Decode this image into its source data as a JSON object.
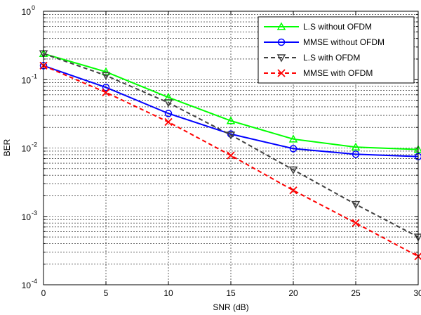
{
  "chart_data": {
    "type": "line",
    "title": "",
    "xlabel": "SNR (dB)",
    "ylabel": "BER",
    "x": [
      0,
      5,
      10,
      15,
      20,
      25,
      30
    ],
    "xlim": [
      0,
      30
    ],
    "ylim": [
      0.0001,
      1
    ],
    "yscale": "log",
    "xticks": [
      0,
      5,
      10,
      15,
      20,
      25,
      30
    ],
    "xtick_labels": [
      "0",
      "5",
      "10",
      "15",
      "20",
      "25",
      "30"
    ],
    "yticks": [
      {
        "value": 1,
        "base": "10",
        "exp": "0"
      },
      {
        "value": 0.1,
        "base": "10",
        "exp": "-1"
      },
      {
        "value": 0.01,
        "base": "10",
        "exp": "-2"
      },
      {
        "value": 0.001,
        "base": "10",
        "exp": "-3"
      },
      {
        "value": 0.0001,
        "base": "10",
        "exp": "-4"
      }
    ],
    "grid": true,
    "legend_position": "top-right",
    "series": [
      {
        "name": "L.S without OFDM",
        "color": "#00ff00",
        "linestyle": "solid",
        "marker": "triangle-up",
        "values": [
          0.24,
          0.13,
          0.055,
          0.025,
          0.0135,
          0.0103,
          0.0095
        ]
      },
      {
        "name": "MMSE without OFDM",
        "color": "#0000ff",
        "linestyle": "solid",
        "marker": "circle",
        "values": [
          0.16,
          0.077,
          0.032,
          0.016,
          0.0098,
          0.0081,
          0.0075
        ]
      },
      {
        "name": "L.S with OFDM",
        "color": "#404040",
        "linestyle": "dashed",
        "marker": "triangle-down",
        "values": [
          0.24,
          0.115,
          0.046,
          0.0155,
          0.0048,
          0.0015,
          0.0005
        ]
      },
      {
        "name": "MMSE with OFDM",
        "color": "#ff0000",
        "linestyle": "dashed",
        "marker": "x",
        "values": [
          0.16,
          0.065,
          0.024,
          0.0078,
          0.0024,
          0.0008,
          0.00026
        ]
      }
    ]
  }
}
